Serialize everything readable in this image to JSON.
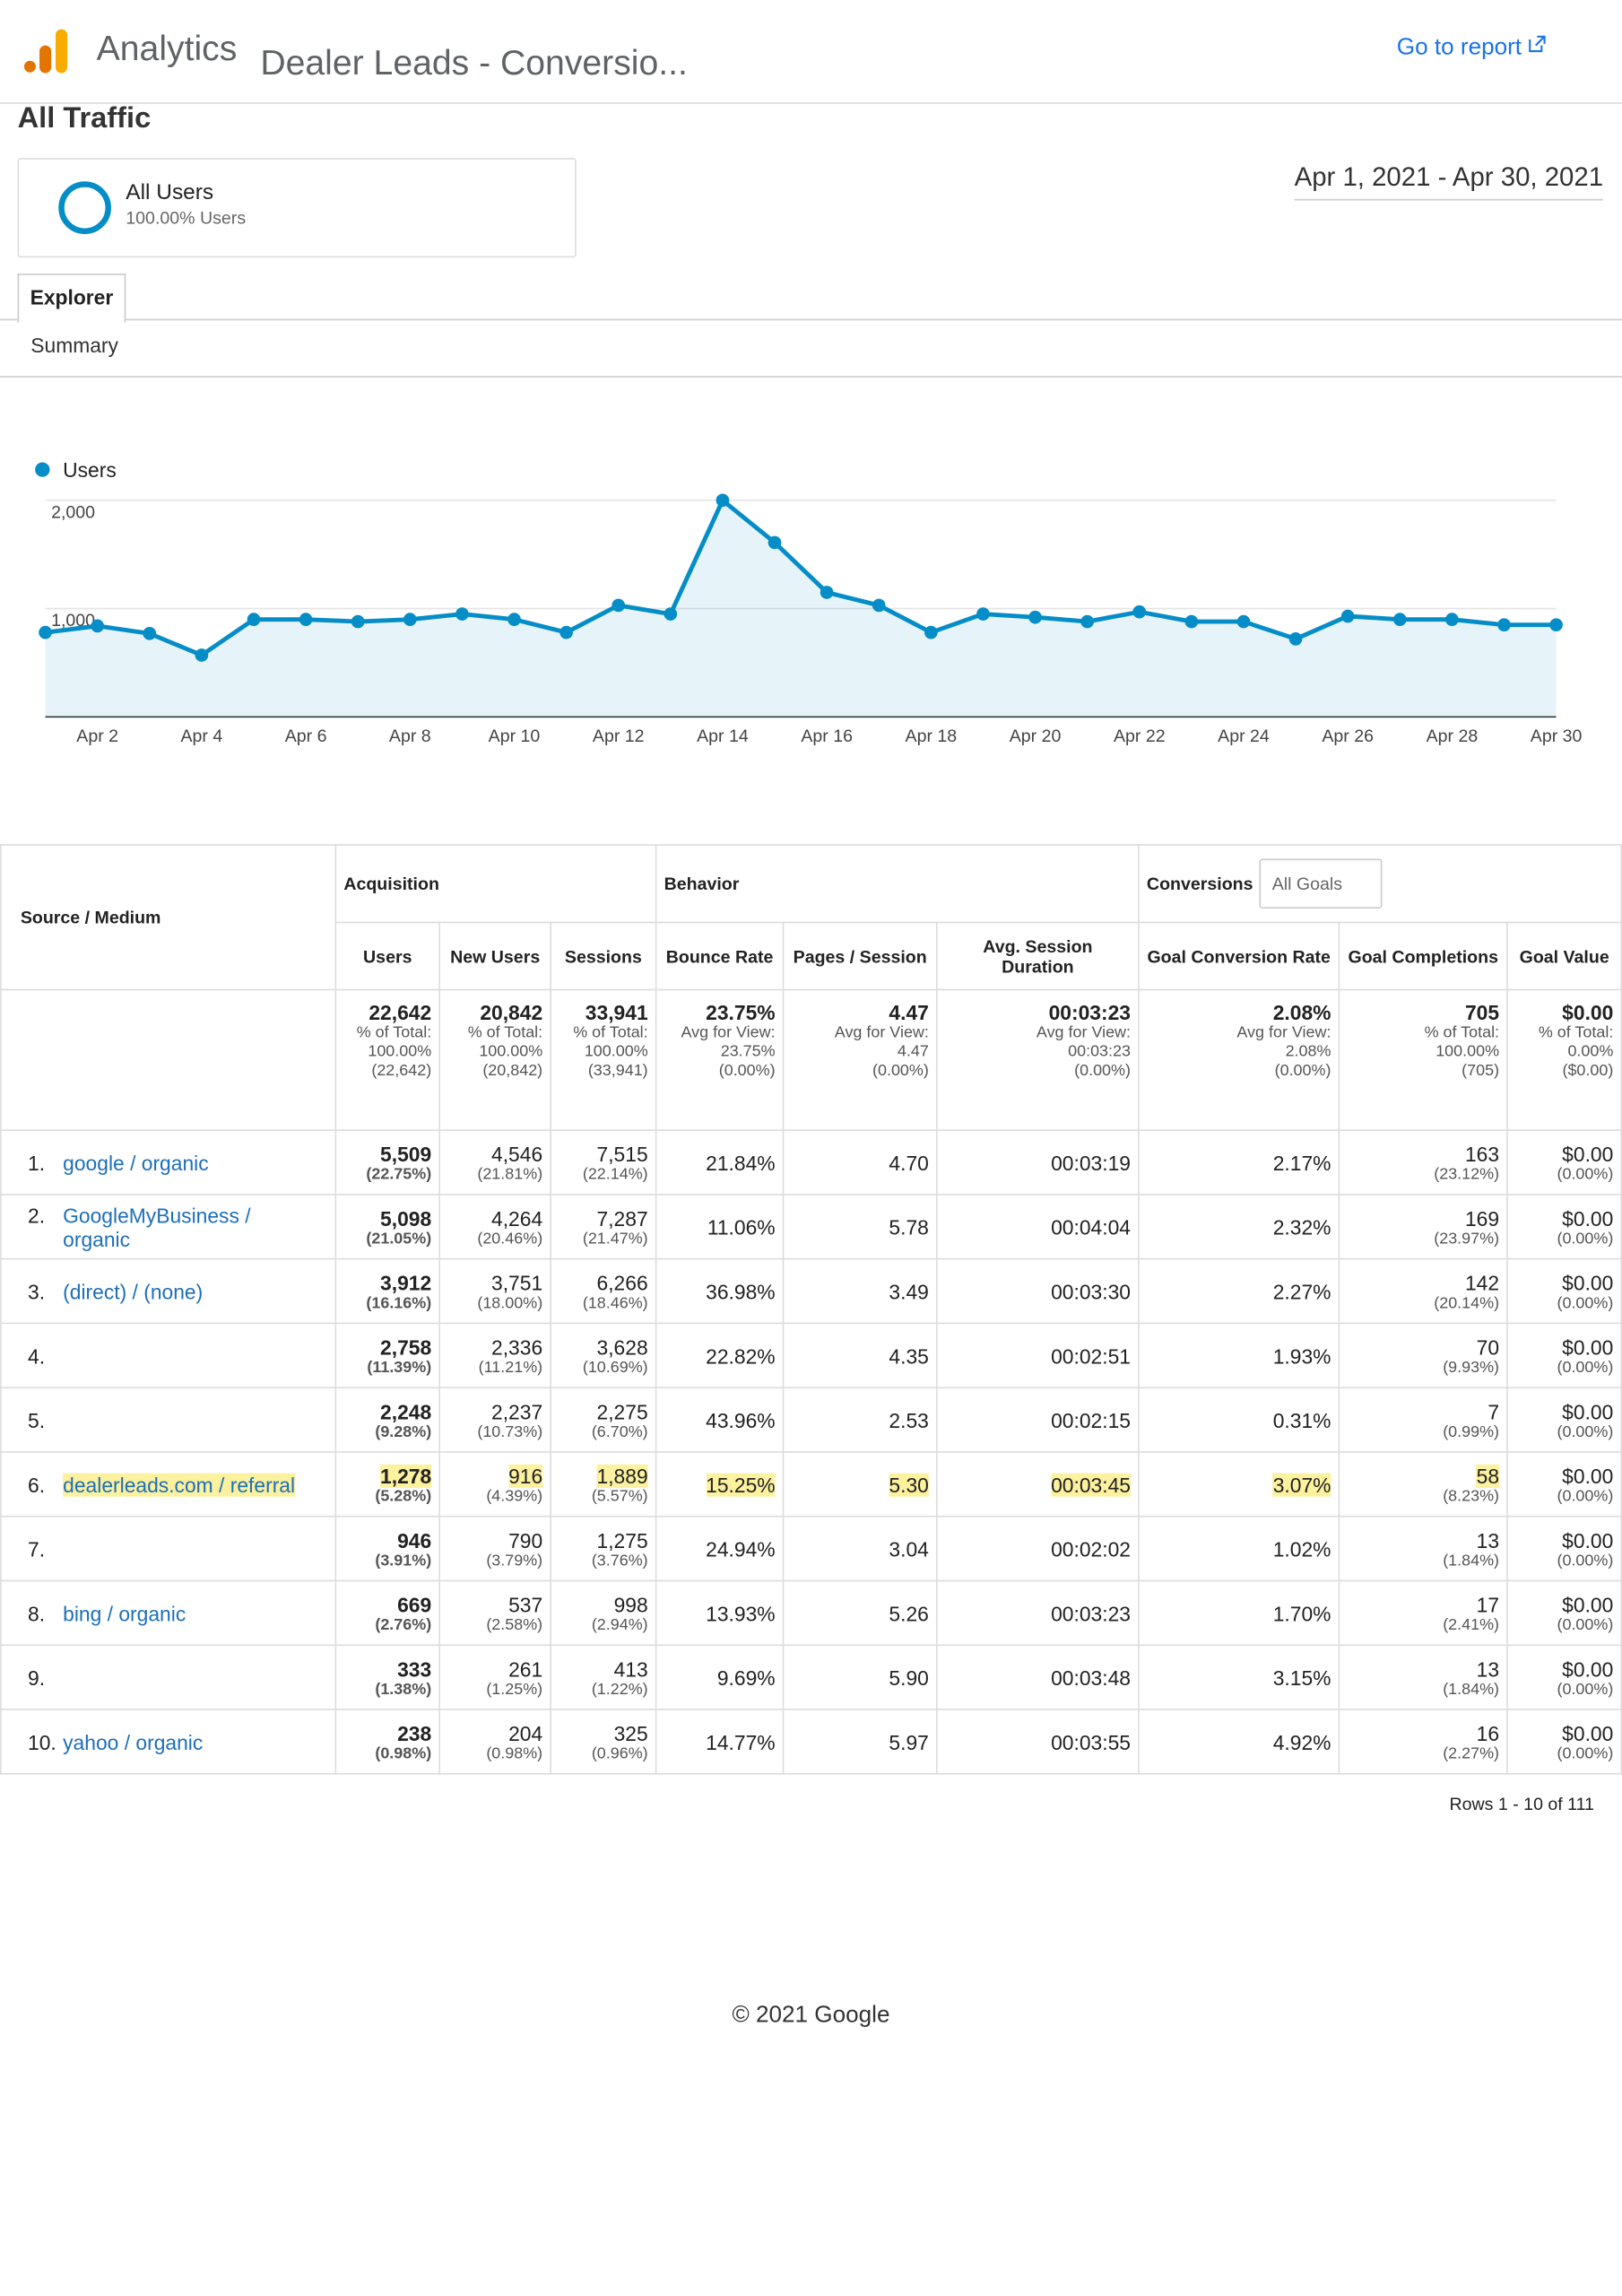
{
  "header": {
    "product": "Analytics",
    "property": "Dealer Leads - Conversio...",
    "report_link": "Go to report",
    "report_title": "All Traffic",
    "segment": {
      "name": "All Users",
      "detail": "100.00% Users"
    },
    "date_range": "Apr 1, 2021 - Apr 30, 2021",
    "tab": "Explorer",
    "subtab": "Summary"
  },
  "chart_data": {
    "type": "line",
    "series": [
      {
        "name": "Users",
        "color": "#058dc7",
        "values": [
          780,
          840,
          770,
          570,
          900,
          900,
          880,
          900,
          950,
          900,
          780,
          1030,
          950,
          2000,
          1610,
          1150,
          1030,
          780,
          950,
          920,
          880,
          970,
          880,
          880,
          720,
          930,
          900,
          900,
          850,
          850
        ]
      }
    ],
    "categories": [
      null,
      "Apr 2",
      null,
      "Apr 4",
      null,
      "Apr 6",
      null,
      "Apr 8",
      null,
      "Apr 10",
      null,
      "Apr 12",
      null,
      "Apr 14",
      null,
      "Apr 16",
      null,
      "Apr 18",
      null,
      "Apr 20",
      null,
      "Apr 22",
      null,
      "Apr 24",
      null,
      "Apr 26",
      null,
      "Apr 28",
      null,
      "Apr 30"
    ],
    "ylim": [
      0,
      2000
    ],
    "yticks": [
      {
        "value": 1000,
        "label": "1,000"
      },
      {
        "value": 2000,
        "label": "2,000"
      }
    ],
    "grid": true
  },
  "table": {
    "groups": [
      "Acquisition",
      "Behavior",
      "Conversions"
    ],
    "goal_selector": "All Goals",
    "columns": [
      "Source / Medium",
      "Users",
      "New Users",
      "Sessions",
      "Bounce Rate",
      "Pages / Session",
      "Avg. Session Duration",
      "Goal Conversion Rate",
      "Goal Completions",
      "Goal Value"
    ],
    "totals": [
      {
        "value": "22,642",
        "sub": [
          "% of Total:",
          "100.00%",
          "(22,642)"
        ]
      },
      {
        "value": "20,842",
        "sub": [
          "% of Total:",
          "100.00%",
          "(20,842)"
        ]
      },
      {
        "value": "33,941",
        "sub": [
          "% of Total:",
          "100.00%",
          "(33,941)"
        ]
      },
      {
        "value": "23.75%",
        "sub": [
          "Avg for View:",
          "23.75%",
          "(0.00%)"
        ]
      },
      {
        "value": "4.47",
        "sub": [
          "Avg for View:",
          "4.47",
          "(0.00%)"
        ]
      },
      {
        "value": "00:03:23",
        "sub": [
          "Avg for View:",
          "00:03:23",
          "(0.00%)"
        ]
      },
      {
        "value": "2.08%",
        "sub": [
          "Avg for View:",
          "2.08%",
          "(0.00%)"
        ]
      },
      {
        "value": "705",
        "sub": [
          "% of Total:",
          "100.00%",
          "(705)"
        ]
      },
      {
        "value": "$0.00",
        "sub": [
          "% of Total:",
          "0.00%",
          "($0.00)"
        ]
      }
    ],
    "rows": [
      {
        "rank": "1.",
        "source": "google / organic",
        "cells": [
          {
            "value": "5,509",
            "sub": "(22.75%)"
          },
          {
            "value": "4,546",
            "sub": "(21.81%)"
          },
          {
            "value": "7,515",
            "sub": "(22.14%)"
          },
          {
            "value": "21.84%"
          },
          {
            "value": "4.70"
          },
          {
            "value": "00:03:19"
          },
          {
            "value": "2.17%"
          },
          {
            "value": "163",
            "sub": "(23.12%)"
          },
          {
            "value": "$0.00",
            "sub": "(0.00%)"
          }
        ]
      },
      {
        "rank": "2.",
        "source": "GoogleMyBusiness / organic",
        "cells": [
          {
            "value": "5,098",
            "sub": "(21.05%)"
          },
          {
            "value": "4,264",
            "sub": "(20.46%)"
          },
          {
            "value": "7,287",
            "sub": "(21.47%)"
          },
          {
            "value": "11.06%"
          },
          {
            "value": "5.78"
          },
          {
            "value": "00:04:04"
          },
          {
            "value": "2.32%"
          },
          {
            "value": "169",
            "sub": "(23.97%)"
          },
          {
            "value": "$0.00",
            "sub": "(0.00%)"
          }
        ]
      },
      {
        "rank": "3.",
        "source": "(direct) / (none)",
        "cells": [
          {
            "value": "3,912",
            "sub": "(16.16%)"
          },
          {
            "value": "3,751",
            "sub": "(18.00%)"
          },
          {
            "value": "6,266",
            "sub": "(18.46%)"
          },
          {
            "value": "36.98%"
          },
          {
            "value": "3.49"
          },
          {
            "value": "00:03:30"
          },
          {
            "value": "2.27%"
          },
          {
            "value": "142",
            "sub": "(20.14%)"
          },
          {
            "value": "$0.00",
            "sub": "(0.00%)"
          }
        ]
      },
      {
        "rank": "4.",
        "cells": [
          {
            "value": "2,758",
            "sub": "(11.39%)"
          },
          {
            "value": "2,336",
            "sub": "(11.21%)"
          },
          {
            "value": "3,628",
            "sub": "(10.69%)"
          },
          {
            "value": "22.82%"
          },
          {
            "value": "4.35"
          },
          {
            "value": "00:02:51"
          },
          {
            "value": "1.93%"
          },
          {
            "value": "70",
            "sub": "(9.93%)"
          },
          {
            "value": "$0.00",
            "sub": "(0.00%)"
          }
        ]
      },
      {
        "rank": "5.",
        "cells": [
          {
            "value": "2,248",
            "sub": "(9.28%)"
          },
          {
            "value": "2,237",
            "sub": "(10.73%)"
          },
          {
            "value": "2,275",
            "sub": "(6.70%)"
          },
          {
            "value": "43.96%"
          },
          {
            "value": "2.53"
          },
          {
            "value": "00:02:15"
          },
          {
            "value": "0.31%"
          },
          {
            "value": "7",
            "sub": "(0.99%)"
          },
          {
            "value": "$0.00",
            "sub": "(0.00%)"
          }
        ]
      },
      {
        "rank": "6.",
        "source": "dealerleads.com / referral",
        "highlight": true,
        "cells": [
          {
            "value": "1,278",
            "sub": "(5.28%)",
            "highlight": true
          },
          {
            "value": "916",
            "sub": "(4.39%)",
            "highlight": true
          },
          {
            "value": "1,889",
            "sub": "(5.57%)",
            "highlight": true
          },
          {
            "value": "15.25%",
            "highlight": true
          },
          {
            "value": "5.30",
            "highlight": true
          },
          {
            "value": "00:03:45",
            "highlight": true
          },
          {
            "value": "3.07%",
            "highlight": true
          },
          {
            "value": "58",
            "sub": "(8.23%)",
            "highlight": true
          },
          {
            "value": "$0.00",
            "sub": "(0.00%)"
          }
        ]
      },
      {
        "rank": "7.",
        "cells": [
          {
            "value": "946",
            "sub": "(3.91%)"
          },
          {
            "value": "790",
            "sub": "(3.79%)"
          },
          {
            "value": "1,275",
            "sub": "(3.76%)"
          },
          {
            "value": "24.94%"
          },
          {
            "value": "3.04"
          },
          {
            "value": "00:02:02"
          },
          {
            "value": "1.02%"
          },
          {
            "value": "13",
            "sub": "(1.84%)"
          },
          {
            "value": "$0.00",
            "sub": "(0.00%)"
          }
        ]
      },
      {
        "rank": "8.",
        "source": "bing / organic",
        "cells": [
          {
            "value": "669",
            "sub": "(2.76%)"
          },
          {
            "value": "537",
            "sub": "(2.58%)"
          },
          {
            "value": "998",
            "sub": "(2.94%)"
          },
          {
            "value": "13.93%"
          },
          {
            "value": "5.26"
          },
          {
            "value": "00:03:23"
          },
          {
            "value": "1.70%"
          },
          {
            "value": "17",
            "sub": "(2.41%)"
          },
          {
            "value": "$0.00",
            "sub": "(0.00%)"
          }
        ]
      },
      {
        "rank": "9.",
        "cells": [
          {
            "value": "333",
            "sub": "(1.38%)"
          },
          {
            "value": "261",
            "sub": "(1.25%)"
          },
          {
            "value": "413",
            "sub": "(1.22%)"
          },
          {
            "value": "9.69%"
          },
          {
            "value": "5.90"
          },
          {
            "value": "00:03:48"
          },
          {
            "value": "3.15%"
          },
          {
            "value": "13",
            "sub": "(1.84%)"
          },
          {
            "value": "$0.00",
            "sub": "(0.00%)"
          }
        ]
      },
      {
        "rank": "10.",
        "source": "yahoo / organic",
        "cells": [
          {
            "value": "238",
            "sub": "(0.98%)"
          },
          {
            "value": "204",
            "sub": "(0.98%)"
          },
          {
            "value": "325",
            "sub": "(0.96%)"
          },
          {
            "value": "14.77%"
          },
          {
            "value": "5.97"
          },
          {
            "value": "00:03:55"
          },
          {
            "value": "4.92%"
          },
          {
            "value": "16",
            "sub": "(2.27%)"
          },
          {
            "value": "$0.00",
            "sub": "(0.00%)"
          }
        ]
      }
    ],
    "pagination": "Rows 1 - 10 of 111"
  },
  "footer": "© 2021 Google"
}
